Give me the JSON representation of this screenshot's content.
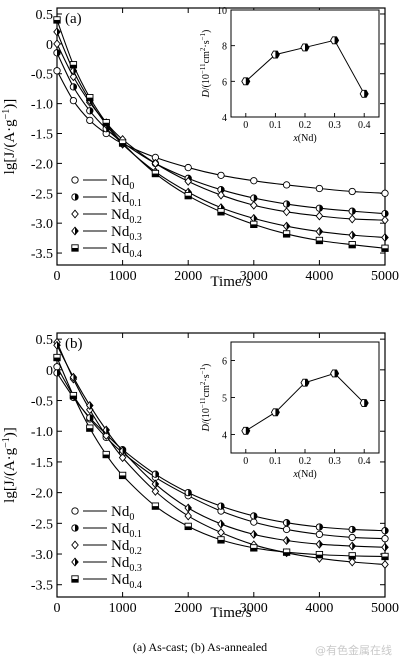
{
  "caption": "(a) As-cast; (b) As-annealed",
  "watermark": "@有色金属在线",
  "chart_data": [
    {
      "type": "line",
      "panel_label": "(a)",
      "xlabel": "Time/s",
      "ylabel": "lg[J/(A·g⁻¹)]",
      "xlim": [
        0,
        5000
      ],
      "ylim": [
        -3.7,
        0.6
      ],
      "xticks": [
        0,
        1000,
        2000,
        3000,
        4000,
        5000
      ],
      "yticks": [
        0.5,
        0,
        -0.5,
        -1.0,
        -1.5,
        -2.0,
        -2.5,
        -3.0,
        -3.5
      ],
      "ytick_labels": [
        "0.5",
        "0",
        "-0.5",
        "-1.0",
        "-1.5",
        "-2.0",
        "-2.5",
        "-3.0",
        "-3.5"
      ],
      "legend_position": "bottom-left",
      "x": [
        0,
        250,
        500,
        750,
        1000,
        1500,
        2000,
        2500,
        3000,
        3500,
        4000,
        4500,
        5000
      ],
      "series": [
        {
          "name": "Nd",
          "subscript": "0",
          "marker": "open-circle",
          "values": [
            -0.45,
            -0.95,
            -1.28,
            -1.5,
            -1.67,
            -1.9,
            -2.07,
            -2.2,
            -2.29,
            -2.36,
            -2.42,
            -2.47,
            -2.5
          ]
        },
        {
          "name": "Nd",
          "subscript": "0.1",
          "marker": "half-filled-circle",
          "values": [
            -0.15,
            -0.72,
            -1.12,
            -1.42,
            -1.65,
            -2.0,
            -2.25,
            -2.44,
            -2.58,
            -2.68,
            -2.75,
            -2.8,
            -2.84
          ]
        },
        {
          "name": "Nd",
          "subscript": "0.2",
          "marker": "open-diamond",
          "values": [
            0.0,
            -0.55,
            -0.98,
            -1.32,
            -1.6,
            -2.0,
            -2.3,
            -2.53,
            -2.7,
            -2.81,
            -2.88,
            -2.93,
            -2.95
          ]
        },
        {
          "name": "Nd",
          "subscript": "0.3",
          "marker": "half-filled-diamond",
          "values": [
            0.2,
            -0.45,
            -0.95,
            -1.35,
            -1.68,
            -2.14,
            -2.48,
            -2.74,
            -2.92,
            -3.05,
            -3.14,
            -3.2,
            -3.24
          ]
        },
        {
          "name": "Nd",
          "subscript": "0.4",
          "marker": "half-filled-square",
          "values": [
            0.4,
            -0.35,
            -0.9,
            -1.32,
            -1.66,
            -2.17,
            -2.54,
            -2.81,
            -3.02,
            -3.18,
            -3.29,
            -3.36,
            -3.42
          ]
        }
      ],
      "inset": {
        "type": "line",
        "xlabel": "x(Nd)",
        "ylabel": "D/(10⁻¹¹cm²·s⁻¹)",
        "xlim": [
          -0.05,
          0.45
        ],
        "ylim": [
          4,
          10
        ],
        "xticks": [
          0,
          0.1,
          0.2,
          0.3,
          0.4
        ],
        "xtick_labels": [
          "0",
          "0.1",
          "0.2",
          "0.3",
          "0.4"
        ],
        "yticks": [
          4,
          6,
          8,
          10
        ],
        "x": [
          0,
          0.1,
          0.2,
          0.3,
          0.4
        ],
        "values": [
          6.0,
          7.5,
          7.9,
          8.3,
          5.3
        ]
      }
    },
    {
      "type": "line",
      "panel_label": "(b)",
      "xlabel": "Time/s",
      "ylabel": "lg[J/(A·g⁻¹)]",
      "xlim": [
        0,
        5000
      ],
      "ylim": [
        -3.7,
        0.6
      ],
      "xticks": [
        0,
        1000,
        2000,
        3000,
        4000,
        5000
      ],
      "yticks": [
        0.5,
        0,
        -0.5,
        -1.0,
        -1.5,
        -2.0,
        -2.5,
        -3.0,
        -3.5
      ],
      "ytick_labels": [
        "0.5",
        "0",
        "-0.5",
        "-1.0",
        "-1.5",
        "-2.0",
        "-2.5",
        "-3.0",
        "-3.5"
      ],
      "legend_position": "bottom-left",
      "x": [
        0,
        250,
        500,
        750,
        1000,
        1500,
        2000,
        2500,
        3000,
        3500,
        4000,
        4500,
        5000
      ],
      "series": [
        {
          "name": "Nd",
          "subscript": "0",
          "marker": "open-circle",
          "values": [
            0.05,
            -0.42,
            -0.8,
            -1.1,
            -1.35,
            -1.75,
            -2.05,
            -2.3,
            -2.48,
            -2.6,
            -2.68,
            -2.73,
            -2.75
          ]
        },
        {
          "name": "Nd",
          "subscript": "0.1",
          "marker": "half-filled-circle",
          "values": [
            -0.05,
            -0.45,
            -0.78,
            -1.05,
            -1.3,
            -1.7,
            -2.0,
            -2.22,
            -2.38,
            -2.49,
            -2.56,
            -2.6,
            -2.62
          ]
        },
        {
          "name": "Nd",
          "subscript": "0.2",
          "marker": "open-diamond",
          "values": [
            0.45,
            -0.15,
            -0.65,
            -1.07,
            -1.43,
            -1.98,
            -2.38,
            -2.65,
            -2.85,
            -2.98,
            -3.07,
            -3.13,
            -3.17
          ]
        },
        {
          "name": "Nd",
          "subscript": "0.3",
          "marker": "half-filled-diamond",
          "values": [
            0.4,
            -0.12,
            -0.58,
            -0.98,
            -1.32,
            -1.86,
            -2.25,
            -2.51,
            -2.68,
            -2.78,
            -2.84,
            -2.87,
            -2.89
          ]
        },
        {
          "name": "Nd",
          "subscript": "0.4",
          "marker": "half-filled-square",
          "values": [
            0.2,
            -0.42,
            -0.95,
            -1.38,
            -1.72,
            -2.22,
            -2.55,
            -2.77,
            -2.9,
            -2.97,
            -3.01,
            -3.03,
            -3.04
          ]
        }
      ],
      "inset": {
        "type": "line",
        "xlabel": "x(Nd)",
        "ylabel": "D/(10⁻¹¹cm²·s⁻¹)",
        "xlim": [
          -0.05,
          0.45
        ],
        "ylim": [
          3.5,
          6.5
        ],
        "xticks": [
          0,
          0.1,
          0.2,
          0.3,
          0.4
        ],
        "xtick_labels": [
          "0",
          "0.1",
          "0.2",
          "0.3",
          "0.4"
        ],
        "yticks": [
          4,
          5,
          6
        ],
        "x": [
          0,
          0.1,
          0.2,
          0.3,
          0.4
        ],
        "values": [
          4.1,
          4.6,
          5.4,
          5.65,
          4.85
        ]
      }
    }
  ]
}
